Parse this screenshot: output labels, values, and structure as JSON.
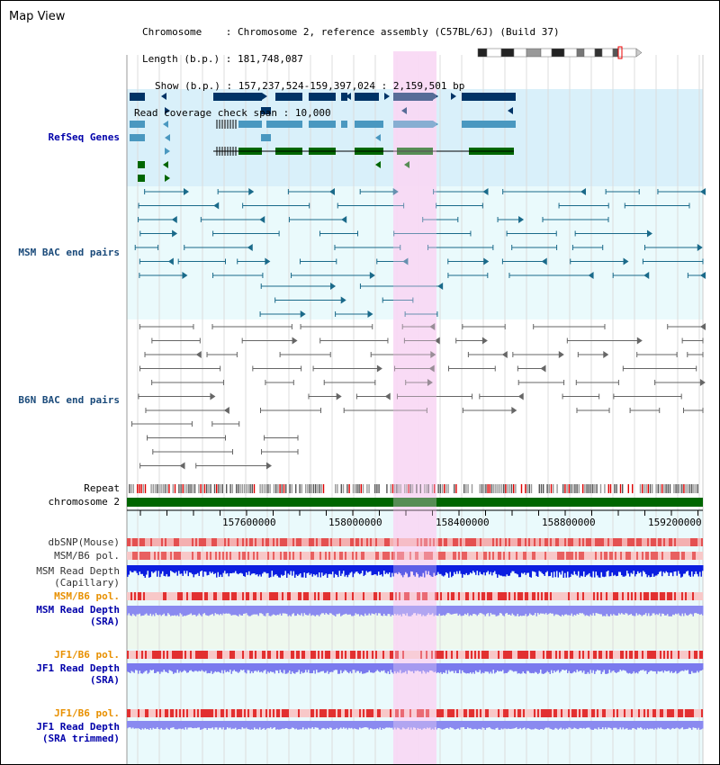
{
  "window": {
    "title": "Map View"
  },
  "info": {
    "chromosome_key": "Chromosome",
    "chromosome_val": "Chromosome 2, reference assembly (C57BL/6J) (Build 37)",
    "length_key": "Length (b.p.)",
    "length_val": "181,748,087",
    "show_key": "Show (b.p.)",
    "show_val": "157,237,524-159,397,024 : 2,159,501 bp",
    "span_key": "Read coverage check span",
    "span_val": "10,000"
  },
  "tracks": {
    "refseq": "RefSeq Genes",
    "msm_bac": "MSM BAC end pairs",
    "b6n_bac": "B6N BAC end pairs",
    "repeat": "Repeat",
    "chromosome": "chromosome 2",
    "dbsnp": "dbSNP(Mouse)",
    "msm_b6_pol_1": "MSM/B6 pol.",
    "msm_read_depth_cap_1": "MSM Read Depth",
    "msm_read_depth_cap_2": "(Capillary)",
    "msm_b6_pol_2": "MSM/B6 pol.",
    "msm_read_depth_sra_1": "MSM Read Depth",
    "msm_read_depth_sra_2": "(SRA)",
    "jf1_b6_pol_1": "JF1/B6 pol.",
    "jf1_read_depth_sra_1": "JF1 Read Depth",
    "jf1_read_depth_sra_2": "(SRA)",
    "jf1_b6_pol_2": "JF1/B6 pol.",
    "jf1_read_depth_trim_1": "JF1 Read Depth",
    "jf1_read_depth_trim_2": "(SRA trimmed)"
  },
  "axis": {
    "ticks": [
      "157600000",
      "158000000",
      "158400000",
      "158800000",
      "159200000"
    ]
  },
  "colors": {
    "refseq_bg": "#d9f0fa",
    "msm_bg": "#eafafc",
    "highlight": "#f8d8f4",
    "chromosome_bar": "#006600",
    "gene_dark": "#003366",
    "gene_mid": "#4a98c0",
    "gene_green": "#006600",
    "bac_teal": "#1a6a8a",
    "bac_gray": "#666666",
    "label_blue": "#0000aa",
    "label_orange": "#e89000"
  }
}
